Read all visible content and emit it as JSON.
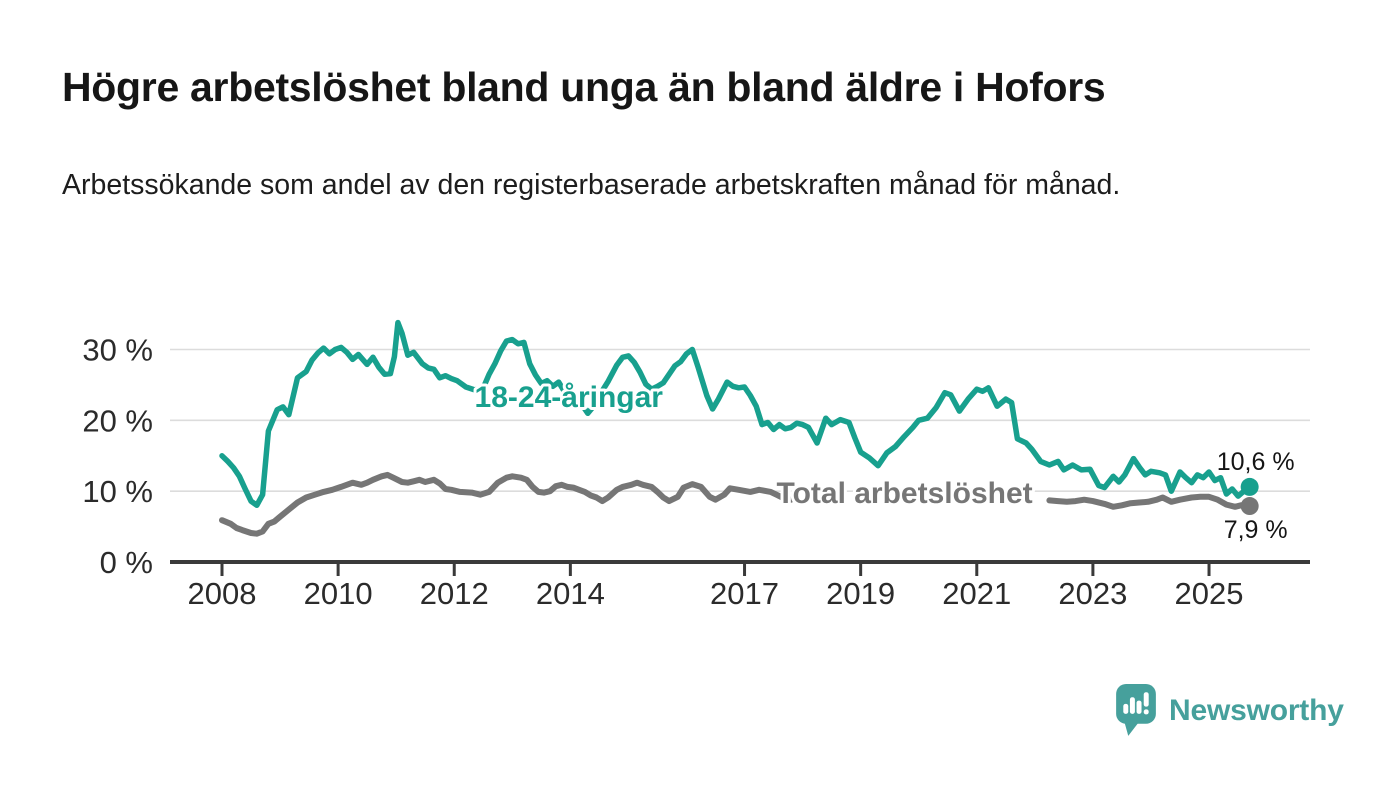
{
  "header": {
    "title": "Högre arbetslöshet bland unga än bland äldre i Hofors",
    "subtitle": "Arbetssökande som andel av den registerbaserade arbetskraften månad för månad."
  },
  "branding": {
    "logo_text": "Newsworthy",
    "brand_color": "#46a09c"
  },
  "colors": {
    "youth_line": "#18a08e",
    "total_line": "#767676",
    "grid": "#dcdcdc",
    "axis": "#3a3a3a",
    "tick_text": "#2b2b2b",
    "end_label_text": "#151515",
    "background": "#ffffff"
  },
  "chart_data": {
    "type": "line",
    "title": "Högre arbetslöshet bland unga än bland äldre i Hofors",
    "subtitle": "Arbetssökande som andel av den registerbaserade arbetskraften månad för månad.",
    "grid": "horizontal",
    "legend_position": "inline-labels",
    "x_axis": {
      "ticks": [
        2008,
        2010,
        2012,
        2014,
        2017,
        2019,
        2021,
        2023,
        2025
      ],
      "tick_labels": [
        "2008",
        "2010",
        "2012",
        "2014",
        "2017",
        "2019",
        "2021",
        "2023",
        "2025"
      ],
      "range": [
        2007.1,
        2026.8
      ]
    },
    "y_axis": {
      "unit": "%",
      "ticks": [
        0,
        10,
        20,
        30
      ],
      "tick_labels": [
        "0 %",
        "10 %",
        "20 %",
        "30 %"
      ],
      "range": [
        0,
        35
      ]
    },
    "series": [
      {
        "id": "total",
        "name": "Total arbetslöshet",
        "label": "Total arbetslöshet",
        "color": "#767676",
        "width": 6,
        "label_anchor": {
          "x": 2017.55,
          "y": 8.3
        },
        "end_value": 7.9,
        "end_label": "7,9 %",
        "end_label_pos": "below",
        "segments": [
          {
            "x": [
              2008.0,
              2008.15,
              2008.25,
              2008.35,
              2008.5,
              2008.6,
              2008.7,
              2008.8,
              2008.9,
              2009.0,
              2009.15,
              2009.3,
              2009.45,
              2009.6,
              2009.75,
              2009.9,
              2010.05,
              2010.15,
              2010.25,
              2010.4,
              2010.5,
              2010.6,
              2010.75,
              2010.85,
              2010.95,
              2011.1,
              2011.2,
              2011.3,
              2011.4,
              2011.5,
              2011.65,
              2011.75,
              2011.85,
              2011.95,
              2012.1,
              2012.3,
              2012.45,
              2012.6,
              2012.75,
              2012.9,
              2013.0,
              2013.15,
              2013.25,
              2013.35,
              2013.45,
              2013.55,
              2013.65,
              2013.75,
              2013.85,
              2013.95,
              2014.05,
              2014.15,
              2014.25,
              2014.35,
              2014.45,
              2014.55,
              2014.65,
              2014.8,
              2014.9,
              2015.05,
              2015.15,
              2015.25,
              2015.4,
              2015.5,
              2015.6,
              2015.7,
              2015.85,
              2015.95,
              2016.1,
              2016.25,
              2016.4,
              2016.5,
              2016.65,
              2016.75,
              2016.9,
              2017.1,
              2017.25,
              2017.45,
              2017.55,
              2017.65,
              2017.8
            ],
            "y": [
              5.9,
              5.4,
              4.8,
              4.5,
              4.1,
              4.0,
              4.3,
              5.4,
              5.7,
              6.4,
              7.4,
              8.4,
              9.1,
              9.5,
              9.9,
              10.2,
              10.6,
              10.9,
              11.2,
              10.9,
              11.2,
              11.6,
              12.1,
              12.3,
              11.9,
              11.3,
              11.2,
              11.4,
              11.6,
              11.3,
              11.6,
              11.1,
              10.3,
              10.2,
              9.9,
              9.8,
              9.5,
              9.9,
              11.2,
              11.9,
              12.1,
              11.9,
              11.6,
              10.6,
              9.9,
              9.8,
              10.0,
              10.7,
              10.9,
              10.6,
              10.5,
              10.2,
              9.9,
              9.4,
              9.1,
              8.6,
              9.1,
              10.2,
              10.6,
              10.9,
              11.2,
              10.9,
              10.6,
              9.9,
              9.1,
              8.6,
              9.2,
              10.5,
              11.0,
              10.6,
              9.2,
              8.8,
              9.5,
              10.4,
              10.2,
              9.9,
              10.2,
              9.9,
              9.5,
              9.1,
              8.8
            ]
          },
          {
            "x": [
              2022.25,
              2022.4,
              2022.55,
              2022.7,
              2022.85,
              2023.0,
              2023.2,
              2023.35,
              2023.5,
              2023.65,
              2023.8,
              2023.95,
              2024.1,
              2024.2,
              2024.35,
              2024.5,
              2024.7,
              2024.85,
              2025.0,
              2025.15,
              2025.3,
              2025.45,
              2025.55,
              2025.7
            ],
            "y": [
              8.7,
              8.6,
              8.5,
              8.6,
              8.8,
              8.6,
              8.2,
              7.8,
              8.0,
              8.3,
              8.4,
              8.5,
              8.8,
              9.1,
              8.5,
              8.8,
              9.1,
              9.2,
              9.2,
              8.8,
              8.1,
              7.8,
              8.0,
              7.9
            ]
          }
        ]
      },
      {
        "id": "youth",
        "name": "18-24-åringar",
        "label": "18-24-åringar",
        "color": "#18a08e",
        "width": 5.5,
        "label_anchor": {
          "x": 2012.35,
          "y": 21.9
        },
        "end_value": 10.6,
        "end_label": "10,6 %",
        "end_label_pos": "above",
        "segments": [
          {
            "x": [
              2008.0,
              2008.1,
              2008.2,
              2008.3,
              2008.4,
              2008.5,
              2008.6,
              2008.7,
              2008.8,
              2008.95,
              2009.05,
              2009.15,
              2009.3,
              2009.45,
              2009.55,
              2009.65,
              2009.75,
              2009.85,
              2009.95,
              2010.05,
              2010.15,
              2010.25,
              2010.35,
              2010.5,
              2010.6,
              2010.7,
              2010.8,
              2010.9,
              2010.97,
              2011.03,
              2011.1,
              2011.2,
              2011.3,
              2011.45,
              2011.55,
              2011.65,
              2011.75,
              2011.85,
              2011.95,
              2012.05,
              2012.2,
              2012.35,
              2012.5,
              2012.6,
              2012.7,
              2012.8,
              2012.9,
              2013.0,
              2013.1,
              2013.2,
              2013.3,
              2013.4,
              2013.5,
              2013.6,
              2013.7,
              2013.8,
              2013.9,
              2014.0,
              2014.1,
              2014.2,
              2014.3,
              2014.4,
              2014.5,
              2014.65,
              2014.8,
              2014.9,
              2015.0,
              2015.1,
              2015.2,
              2015.3,
              2015.4,
              2015.5,
              2015.6,
              2015.7,
              2015.8,
              2015.9,
              2016.0,
              2016.1,
              2016.2,
              2016.35,
              2016.45,
              2016.55,
              2016.7,
              2016.8,
              2016.9,
              2017.0,
              2017.1,
              2017.2,
              2017.3,
              2017.4,
              2017.5,
              2017.6,
              2017.7,
              2017.8,
              2017.9,
              2018.0,
              2018.1,
              2018.25,
              2018.4,
              2018.5,
              2018.65,
              2018.8,
              2018.9,
              2019.0,
              2019.15,
              2019.3,
              2019.45,
              2019.6,
              2019.75,
              2019.9,
              2020.0,
              2020.15,
              2020.3,
              2020.45,
              2020.55,
              2020.7,
              2020.85,
              2021.0,
              2021.1,
              2021.2,
              2021.35,
              2021.5,
              2021.6,
              2021.7,
              2021.85,
              2021.95,
              2022.1,
              2022.25,
              2022.4,
              2022.5,
              2022.65,
              2022.8,
              2022.95,
              2023.1,
              2023.2,
              2023.35,
              2023.45,
              2023.55,
              2023.7,
              2023.8,
              2023.9,
              2024.0,
              2024.15,
              2024.25,
              2024.35,
              2024.5,
              2024.6,
              2024.7,
              2024.8,
              2024.9,
              2025.0,
              2025.1,
              2025.2,
              2025.3,
              2025.4,
              2025.5,
              2025.6,
              2025.7
            ],
            "y": [
              15.0,
              14.2,
              13.3,
              12.1,
              10.3,
              8.6,
              8.0,
              9.5,
              18.5,
              21.5,
              21.9,
              20.8,
              26.0,
              26.9,
              28.5,
              29.5,
              30.2,
              29.4,
              30.0,
              30.3,
              29.6,
              28.6,
              29.3,
              27.9,
              28.9,
              27.5,
              26.5,
              26.6,
              29.0,
              33.8,
              32.3,
              29.2,
              29.6,
              28.0,
              27.4,
              27.2,
              26.0,
              26.3,
              25.9,
              25.6,
              24.7,
              24.3,
              24.6,
              26.5,
              28.0,
              29.8,
              31.2,
              31.4,
              30.8,
              31.0,
              28.0,
              26.4,
              25.2,
              25.6,
              24.8,
              25.4,
              24.0,
              23.0,
              22.6,
              22.2,
              21.0,
              22.0,
              23.5,
              25.5,
              27.8,
              28.9,
              29.1,
              28.2,
              26.8,
              25.1,
              24.4,
              24.8,
              25.3,
              26.5,
              27.7,
              28.3,
              29.4,
              30.0,
              27.5,
              23.5,
              21.6,
              23.0,
              25.4,
              24.8,
              24.6,
              24.7,
              23.5,
              22.0,
              19.4,
              19.7,
              18.7,
              19.4,
              18.8,
              19.0,
              19.6,
              19.4,
              19.0,
              16.8,
              20.3,
              19.4,
              20.1,
              19.7,
              17.5,
              15.5,
              14.7,
              13.6,
              15.4,
              16.3,
              17.7,
              19.0,
              20.0,
              20.3,
              21.8,
              23.9,
              23.6,
              21.3,
              23.0,
              24.4,
              24.1,
              24.6,
              22.0,
              23.0,
              22.5,
              17.4,
              16.8,
              15.9,
              14.2,
              13.7,
              14.2,
              13.0,
              13.7,
              13.0,
              13.1,
              10.8,
              10.5,
              12.1,
              11.3,
              12.3,
              14.6,
              13.4,
              12.3,
              12.8,
              12.6,
              12.3,
              10.0,
              12.7,
              11.9,
              11.2,
              12.3,
              11.9,
              12.7,
              11.5,
              11.9,
              9.6,
              10.3,
              9.3,
              10.0,
              10.6
            ]
          }
        ]
      }
    ]
  }
}
